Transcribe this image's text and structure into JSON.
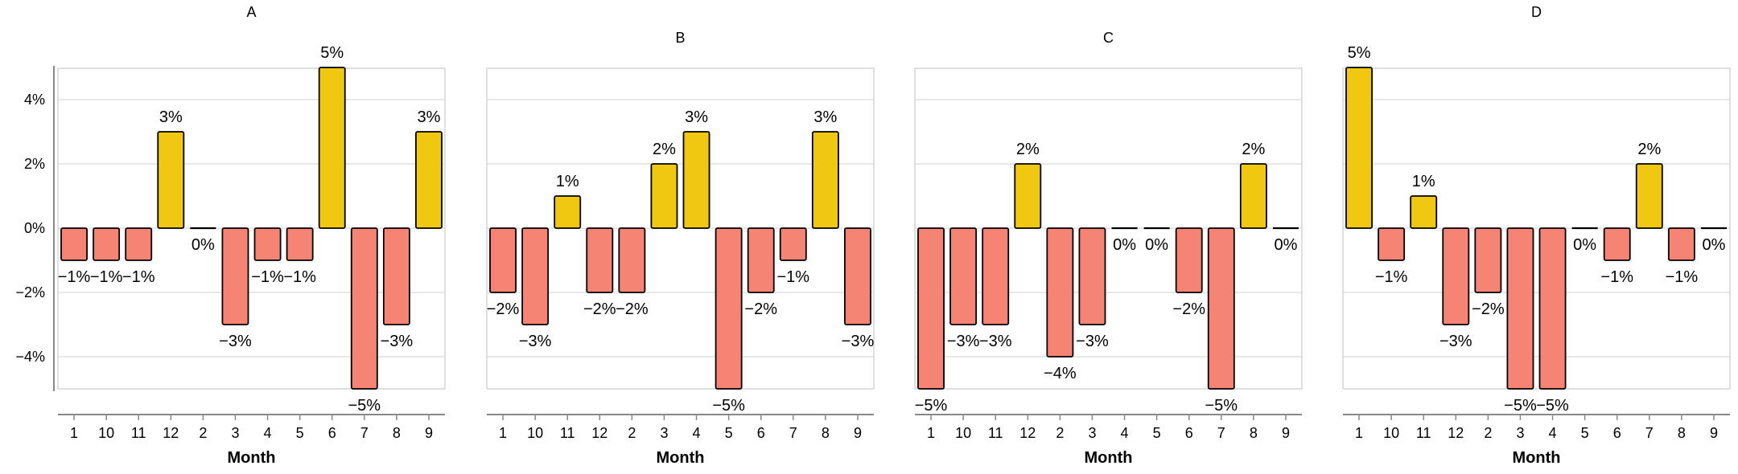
{
  "chart_data": [
    {
      "type": "bar",
      "title": "A",
      "categories": [
        "1",
        "10",
        "11",
        "12",
        "2",
        "3",
        "4",
        "5",
        "6",
        "7",
        "8",
        "9"
      ],
      "values": [
        -1,
        -1,
        -1,
        3,
        0,
        -3,
        -1,
        -1,
        5,
        -5,
        -3,
        3
      ],
      "labels": [
        "−1%",
        "−1%",
        "−1%",
        "3%",
        "0%",
        "−3%",
        "−1%",
        "−1%",
        "5%",
        "−5%",
        "−3%",
        "3%"
      ],
      "xlabel": "Month",
      "ylabel": "",
      "ylim": [
        -5,
        5
      ],
      "yticks": [
        "−4%",
        "−2%",
        "0%",
        "2%",
        "4%"
      ],
      "grid": true
    },
    {
      "type": "bar",
      "title": "B",
      "categories": [
        "1",
        "10",
        "11",
        "12",
        "2",
        "3",
        "4",
        "5",
        "6",
        "7",
        "8",
        "9"
      ],
      "values": [
        -2,
        -3,
        1,
        -2,
        -2,
        2,
        3,
        -5,
        -2,
        -1,
        3,
        -3
      ],
      "labels": [
        "−2%",
        "−3%",
        "1%",
        "−2%",
        "−2%",
        "2%",
        "3%",
        "−5%",
        "−2%",
        "−1%",
        "3%",
        "−3%"
      ],
      "xlabel": "Month",
      "ylabel": "",
      "ylim": [
        -5,
        5
      ],
      "grid": true
    },
    {
      "type": "bar",
      "title": "C",
      "categories": [
        "1",
        "10",
        "11",
        "12",
        "2",
        "3",
        "4",
        "5",
        "6",
        "7",
        "8",
        "9"
      ],
      "values": [
        -5,
        -3,
        -3,
        2,
        -4,
        -3,
        0,
        0,
        -2,
        -5,
        2,
        0
      ],
      "labels": [
        "−5%",
        "−3%",
        "−3%",
        "2%",
        "−4%",
        "−3%",
        "0%",
        "0%",
        "−2%",
        "−5%",
        "2%",
        "0%"
      ],
      "xlabel": "Month",
      "ylabel": "",
      "ylim": [
        -5,
        5
      ],
      "grid": true
    },
    {
      "type": "bar",
      "title": "D",
      "categories": [
        "1",
        "10",
        "11",
        "12",
        "2",
        "3",
        "4",
        "5",
        "6",
        "7",
        "8",
        "9"
      ],
      "values": [
        5,
        -1,
        1,
        -3,
        -2,
        -5,
        -5,
        0,
        -1,
        2,
        -1,
        0
      ],
      "labels": [
        "5%",
        "−1%",
        "1%",
        "−3%",
        "−2%",
        "−5%",
        "−5%",
        "0%",
        "−1%",
        "2%",
        "−1%",
        "0%"
      ],
      "xlabel": "Month",
      "ylabel": "",
      "ylim": [
        -5,
        5
      ],
      "grid": true
    }
  ],
  "colors": {
    "positive": "#f0c812",
    "negative": "#f58474",
    "bar_stroke": "#000000",
    "grid": "#d9d9d9",
    "panel_border": "#d0d0d0",
    "axis": "#888888"
  }
}
